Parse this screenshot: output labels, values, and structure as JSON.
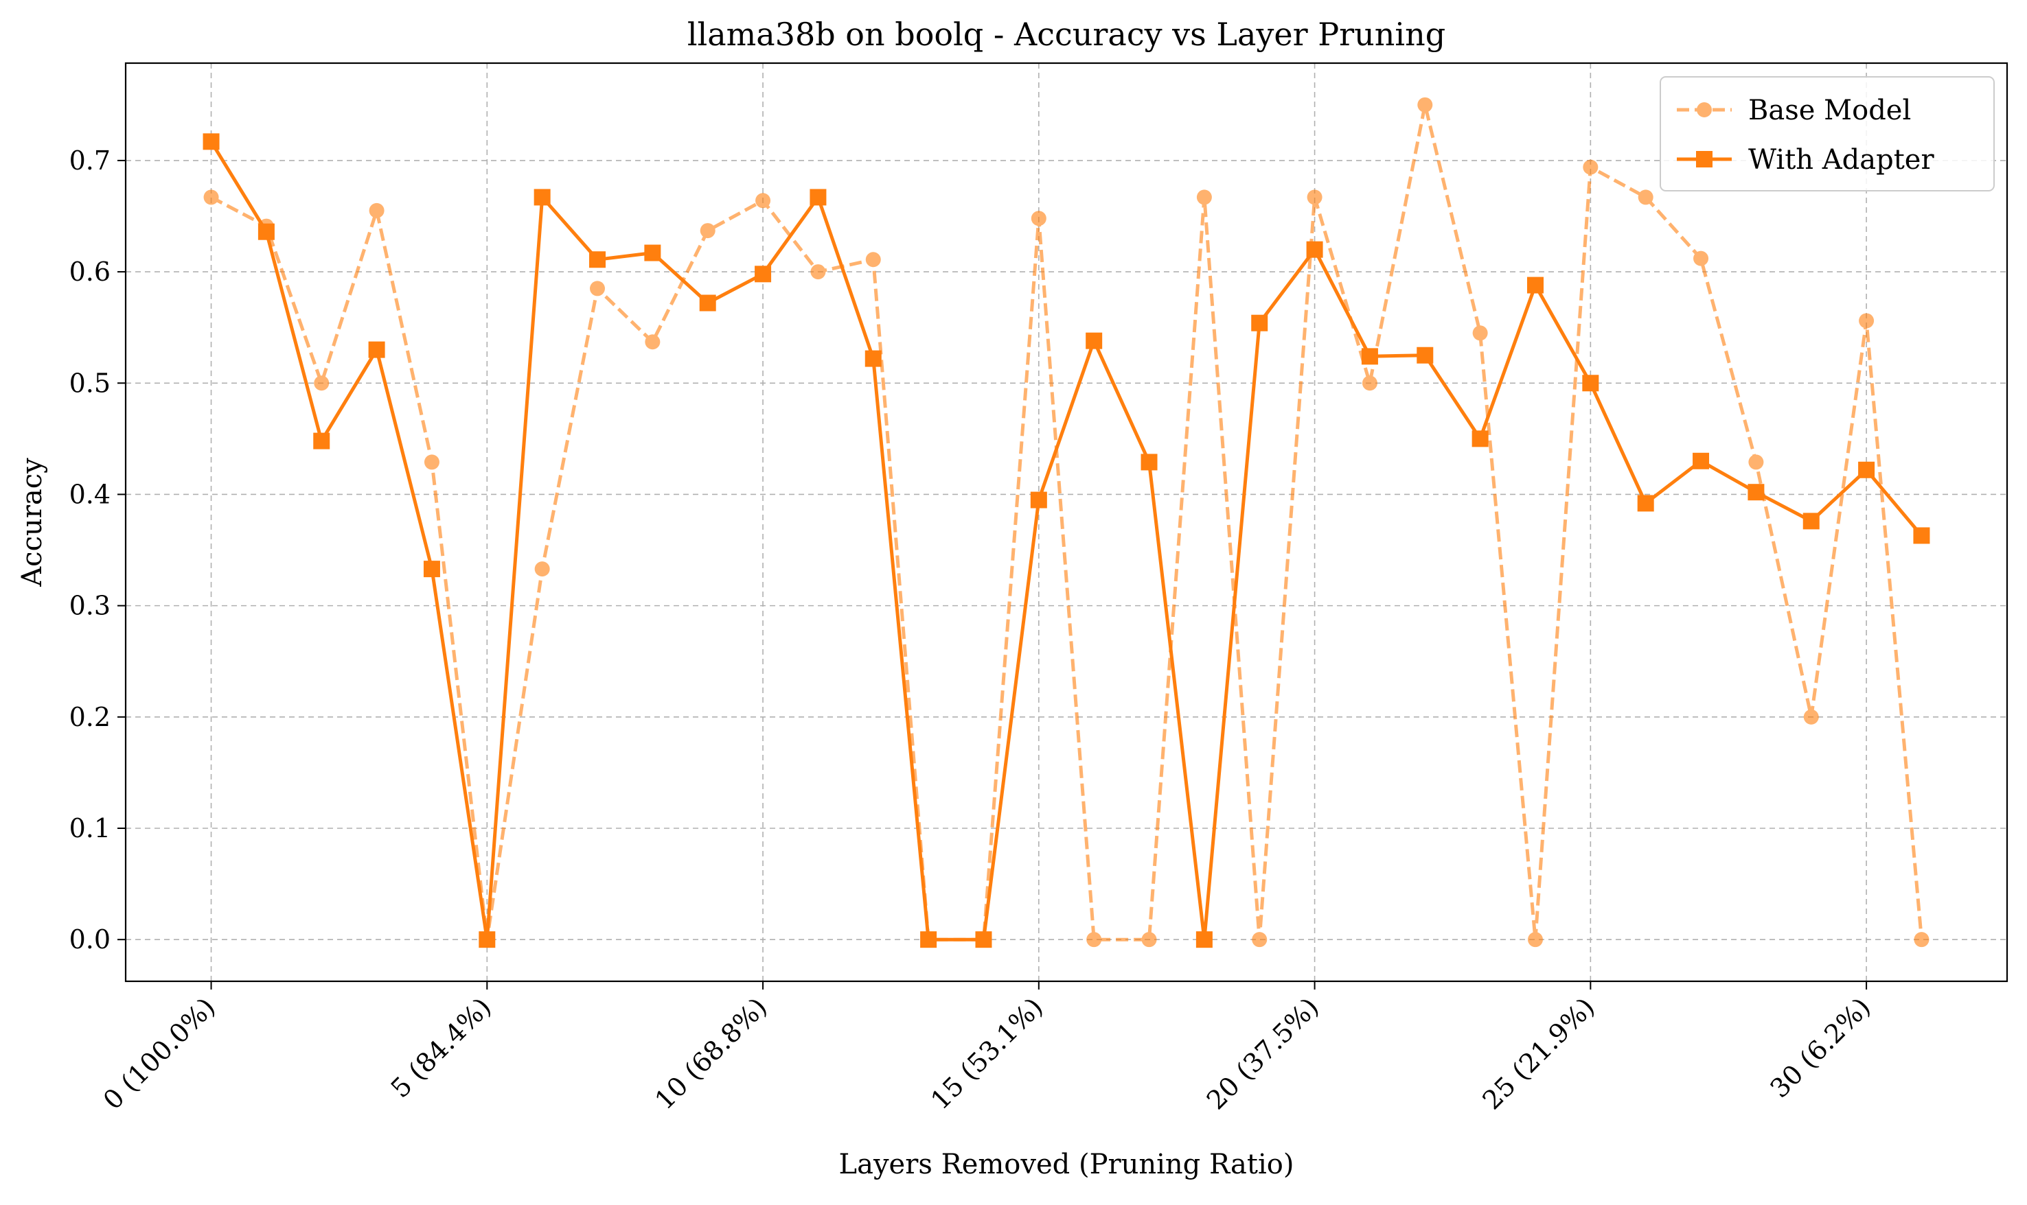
{
  "chart_data": {
    "type": "line",
    "title": "llama38b on boolq - Accuracy vs Layer Pruning",
    "xlabel": "Layers Removed (Pruning Ratio)",
    "ylabel": "Accuracy",
    "x": [
      0,
      1,
      2,
      3,
      4,
      5,
      6,
      7,
      8,
      9,
      10,
      11,
      12,
      13,
      14,
      15,
      16,
      17,
      18,
      19,
      20,
      21,
      22,
      23,
      24,
      25,
      26,
      27,
      28,
      29,
      30,
      31
    ],
    "xticks": [
      0,
      5,
      10,
      15,
      20,
      25,
      30
    ],
    "xtick_labels": [
      "0 (100.0%)",
      "5 (84.4%)",
      "10 (68.8%)",
      "15 (53.1%)",
      "20 (37.5%)",
      "25 (21.9%)",
      "30 (6.2%)"
    ],
    "yticks": [
      0.0,
      0.1,
      0.2,
      0.3,
      0.4,
      0.5,
      0.6,
      0.7
    ],
    "ytick_labels": [
      "0.0",
      "0.1",
      "0.2",
      "0.3",
      "0.4",
      "0.5",
      "0.6",
      "0.7"
    ],
    "xlim": [
      -1.55,
      32.55
    ],
    "ylim": [
      -0.0375,
      0.7875
    ],
    "grid": true,
    "legend_position": "upper right",
    "series": [
      {
        "name": "Base Model",
        "color": "#ffa85a",
        "style": "dashed",
        "marker": "circle",
        "values": [
          0.667,
          0.641,
          0.5,
          0.655,
          0.429,
          0.0,
          0.333,
          0.585,
          0.537,
          0.637,
          0.664,
          0.6,
          0.611,
          0.0,
          0.0,
          0.648,
          0.0,
          0.0,
          0.667,
          0.0,
          0.667,
          0.5,
          0.75,
          0.545,
          0.0,
          0.694,
          0.667,
          0.612,
          0.429,
          0.2,
          0.556,
          0.0
        ]
      },
      {
        "name": "With Adapter",
        "color": "#ff7f0e",
        "style": "solid",
        "marker": "square",
        "values": [
          0.717,
          0.636,
          0.448,
          0.53,
          0.333,
          0.0,
          0.667,
          0.611,
          0.617,
          0.572,
          0.598,
          0.667,
          0.522,
          0.0,
          0.0,
          0.395,
          0.538,
          0.429,
          0.0,
          0.554,
          0.62,
          0.524,
          0.525,
          0.45,
          0.588,
          0.5,
          0.392,
          0.43,
          0.402,
          0.376,
          0.422,
          0.363
        ]
      }
    ]
  }
}
